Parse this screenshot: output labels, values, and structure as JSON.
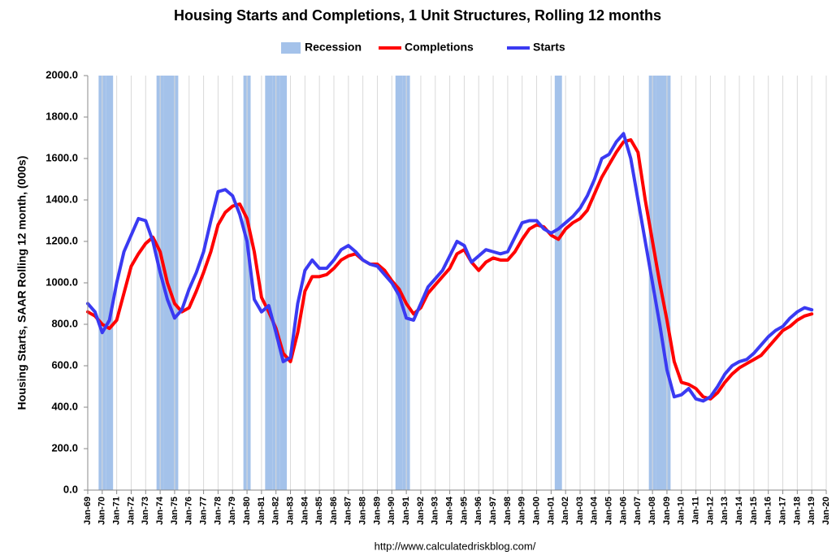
{
  "chart_data": {
    "type": "line",
    "title": "Housing Starts and Completions, 1 Unit Structures, Rolling 12 months",
    "y_label": "Housing Starts, SAAR Rolling 12 month, (000s)",
    "source": "http://www.calculatedriskblog.com/",
    "grid": "x",
    "legend": "top",
    "ylim": [
      0,
      2000
    ],
    "yticks": [
      {
        "value": 0,
        "label": "0.0"
      },
      {
        "value": 200,
        "label": "200.0"
      },
      {
        "value": 400,
        "label": "400.0"
      },
      {
        "value": 600,
        "label": "600.0"
      },
      {
        "value": 800,
        "label": "800.0"
      },
      {
        "value": 1000,
        "label": "1000.0"
      },
      {
        "value": 1200,
        "label": "1200.0"
      },
      {
        "value": 1400,
        "label": "1400.0"
      },
      {
        "value": 1600,
        "label": "1600.0"
      },
      {
        "value": 1800,
        "label": "1800.0"
      },
      {
        "value": 2000,
        "label": "2000.0"
      }
    ],
    "categories": [
      "Jan-69",
      null,
      "Jan-70",
      null,
      "Jan-71",
      null,
      "Jan-72",
      null,
      "Jan-73",
      null,
      "Jan-74",
      null,
      "Jan-75",
      null,
      "Jan-76",
      null,
      "Jan-77",
      null,
      "Jan-78",
      null,
      "Jan-79",
      null,
      "Jan-80",
      null,
      "Jan-81",
      null,
      "Jan-82",
      null,
      "Jan-83",
      null,
      "Jan-84",
      null,
      "Jan-85",
      null,
      "Jan-86",
      null,
      "Jan-87",
      null,
      "Jan-88",
      null,
      "Jan-89",
      null,
      "Jan-90",
      null,
      "Jan-91",
      null,
      "Jan-92",
      null,
      "Jan-93",
      null,
      "Jan-94",
      null,
      "Jan-95",
      null,
      "Jan-96",
      null,
      "Jan-97",
      null,
      "Jan-98",
      null,
      "Jan-99",
      null,
      "Jan-00",
      null,
      "Jan-01",
      null,
      "Jan-02",
      null,
      "Jan-03",
      null,
      "Jan-04",
      null,
      "Jan-05",
      null,
      "Jan-06",
      null,
      "Jan-07",
      null,
      "Jan-08",
      null,
      "Jan-09",
      null,
      "Jan-10",
      null,
      "Jan-11",
      null,
      "Jan-12",
      null,
      "Jan-13",
      null,
      "Jan-14",
      null,
      "Jan-15",
      null,
      "Jan-16",
      null,
      "Jan-17",
      null,
      "Jan-18",
      null,
      "Jan-19",
      null,
      "Jan-20"
    ],
    "series": [
      {
        "name": "Recession",
        "type": "bar",
        "color": "#a4c2ea",
        "values": [
          null,
          null,
          2000,
          2000,
          null,
          null,
          null,
          null,
          null,
          null,
          2000,
          2000,
          2000,
          null,
          null,
          null,
          null,
          null,
          null,
          null,
          null,
          null,
          2000,
          null,
          null,
          2000,
          2000,
          2000,
          null,
          null,
          null,
          null,
          null,
          null,
          null,
          null,
          null,
          null,
          null,
          null,
          null,
          null,
          null,
          2000,
          2000,
          null,
          null,
          null,
          null,
          null,
          null,
          null,
          null,
          null,
          null,
          null,
          null,
          null,
          null,
          null,
          null,
          null,
          null,
          null,
          null,
          2000,
          null,
          null,
          null,
          null,
          null,
          null,
          null,
          null,
          null,
          null,
          null,
          null,
          2000,
          2000,
          2000,
          null,
          null,
          null,
          null,
          null,
          null,
          null,
          null,
          null,
          null,
          null,
          null,
          null,
          null,
          null,
          null,
          null,
          null,
          null,
          null,
          null,
          null
        ]
      },
      {
        "name": "Completions",
        "type": "line",
        "color": "#ff0000",
        "values": [
          860,
          840,
          800,
          780,
          820,
          950,
          1080,
          1140,
          1190,
          1220,
          1150,
          1000,
          900,
          860,
          880,
          960,
          1050,
          1150,
          1280,
          1340,
          1370,
          1380,
          1310,
          1150,
          930,
          860,
          780,
          660,
          620,
          760,
          960,
          1030,
          1030,
          1040,
          1070,
          1110,
          1130,
          1140,
          1110,
          1090,
          1090,
          1060,
          1010,
          970,
          900,
          850,
          880,
          950,
          990,
          1030,
          1070,
          1140,
          1160,
          1100,
          1060,
          1100,
          1120,
          1110,
          1110,
          1150,
          1210,
          1260,
          1280,
          1270,
          1230,
          1210,
          1260,
          1290,
          1310,
          1350,
          1430,
          1510,
          1570,
          1630,
          1680,
          1690,
          1630,
          1400,
          1200,
          1000,
          820,
          620,
          520,
          510,
          490,
          450,
          440,
          470,
          520,
          560,
          590,
          610,
          630,
          650,
          690,
          730,
          770,
          790,
          820,
          840,
          850,
          null,
          null
        ]
      },
      {
        "name": "Starts",
        "type": "line",
        "color": "#3a3af2",
        "values": [
          900,
          860,
          760,
          820,
          1000,
          1150,
          1230,
          1310,
          1300,
          1200,
          1050,
          920,
          830,
          870,
          970,
          1050,
          1150,
          1300,
          1440,
          1450,
          1420,
          1330,
          1200,
          920,
          860,
          890,
          760,
          620,
          640,
          900,
          1060,
          1110,
          1070,
          1070,
          1110,
          1160,
          1180,
          1150,
          1110,
          1090,
          1080,
          1040,
          1000,
          940,
          830,
          820,
          900,
          980,
          1020,
          1060,
          1130,
          1200,
          1180,
          1100,
          1130,
          1160,
          1150,
          1140,
          1150,
          1220,
          1290,
          1300,
          1300,
          1260,
          1240,
          1260,
          1290,
          1320,
          1360,
          1420,
          1500,
          1600,
          1620,
          1680,
          1720,
          1600,
          1400,
          1200,
          1000,
          800,
          580,
          450,
          460,
          490,
          440,
          430,
          450,
          500,
          560,
          600,
          620,
          630,
          660,
          700,
          740,
          770,
          790,
          830,
          860,
          880,
          870,
          null,
          null
        ]
      }
    ]
  }
}
